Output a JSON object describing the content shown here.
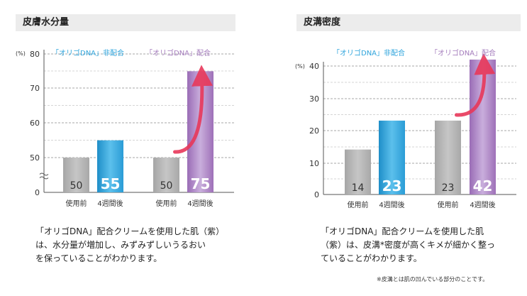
{
  "chart_data": [
    {
      "type": "bar",
      "title": "皮膚水分量",
      "unit": "(%)",
      "ylim": [
        0,
        80
      ],
      "axis_break": true,
      "y_ticks": [
        "0",
        "50",
        "60",
        "70",
        "80"
      ],
      "categories": [
        "使用前",
        "4週間後",
        "使用前",
        "4週間後"
      ],
      "legend": [
        "「オリゴDNA」非配合",
        "「オリゴDNA」配合"
      ],
      "groups": [
        {
          "name": "「オリゴDNA」非配合",
          "values": [
            50,
            55
          ]
        },
        {
          "name": "「オリゴDNA」配合",
          "values": [
            50,
            75
          ]
        }
      ],
      "bar_labels": [
        "50",
        "55",
        "50",
        "75"
      ],
      "caption_lines": [
        "「オリゴDNA」配合クリームを使用した肌（紫）",
        "は、水分量が増加し、みずみずしいうるおい",
        "を保っていることがわかります。"
      ]
    },
    {
      "type": "bar",
      "title": "皮溝密度",
      "unit": "(%)",
      "ylim": [
        0,
        40
      ],
      "y_ticks": [
        "0",
        "10",
        "20",
        "30",
        "40"
      ],
      "categories": [
        "使用前",
        "4週間後",
        "使用前",
        "4週間後"
      ],
      "legend": [
        "「オリゴDNA」非配合",
        "「オリゴDNA」配合"
      ],
      "groups": [
        {
          "name": "「オリゴDNA」非配合",
          "values": [
            14,
            23
          ]
        },
        {
          "name": "「オリゴDNA」配合",
          "values": [
            23,
            42
          ]
        }
      ],
      "bar_labels": [
        "14",
        "23",
        "23",
        "42"
      ],
      "caption_lines": [
        "「オリゴDNA」配合クリームを使用した肌",
        "（紫）は、皮溝*密度が高くキメが細かく整っ",
        "ていることがわかります。"
      ],
      "footnote": "※皮溝とは肌の凹んでいる部分のことです。"
    }
  ],
  "colors": {
    "gray": "#b4b4b4",
    "blue": "#2ea4dc",
    "purple": "#a47cbc",
    "arrow": "#e8385a",
    "header": "#ececec"
  }
}
